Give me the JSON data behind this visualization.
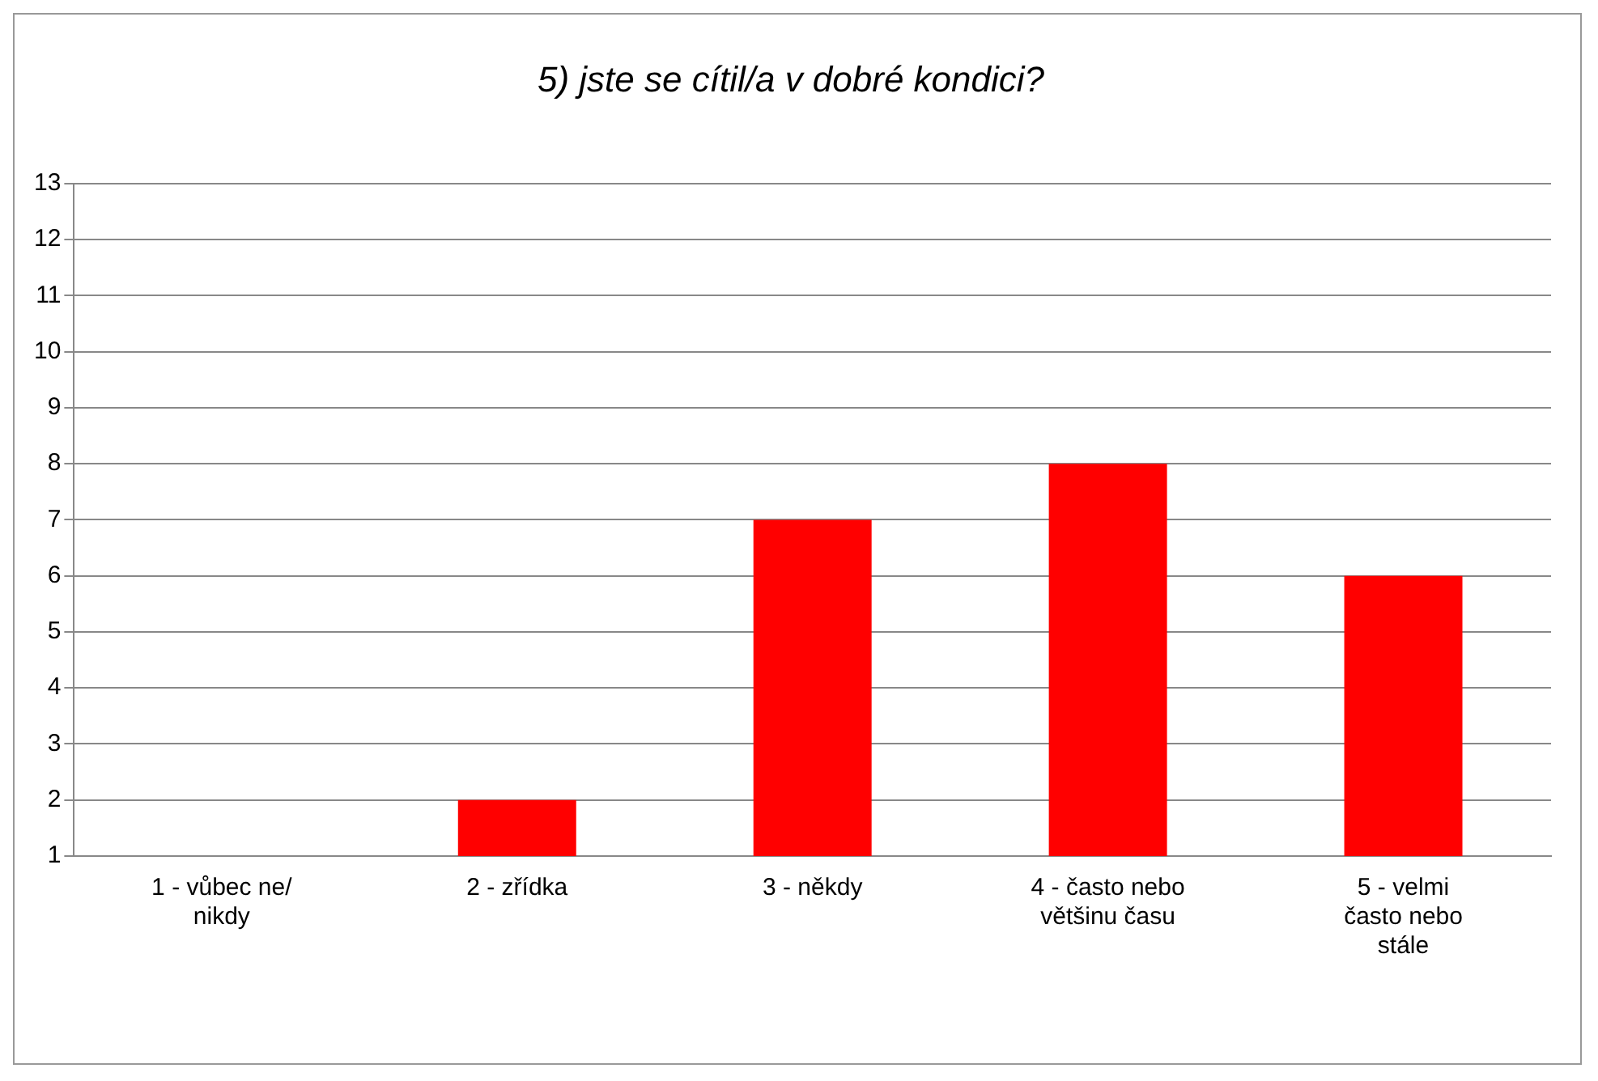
{
  "chart_data": {
    "type": "bar",
    "title": "5) jste se cítil/a v dobré kondici?",
    "categories": [
      "1 - vůbec ne/ nikdy",
      "2 - zřídka",
      "3 - někdy",
      "4 - často nebo většinu času",
      "5 - velmi často nebo stále"
    ],
    "values": [
      1,
      2,
      7,
      8,
      6
    ],
    "color": "#ff0000",
    "ylim": [
      1,
      13
    ],
    "yticks": [
      1,
      2,
      3,
      4,
      5,
      6,
      7,
      8,
      9,
      10,
      11,
      12,
      13
    ],
    "grid": "y",
    "legend": false
  }
}
